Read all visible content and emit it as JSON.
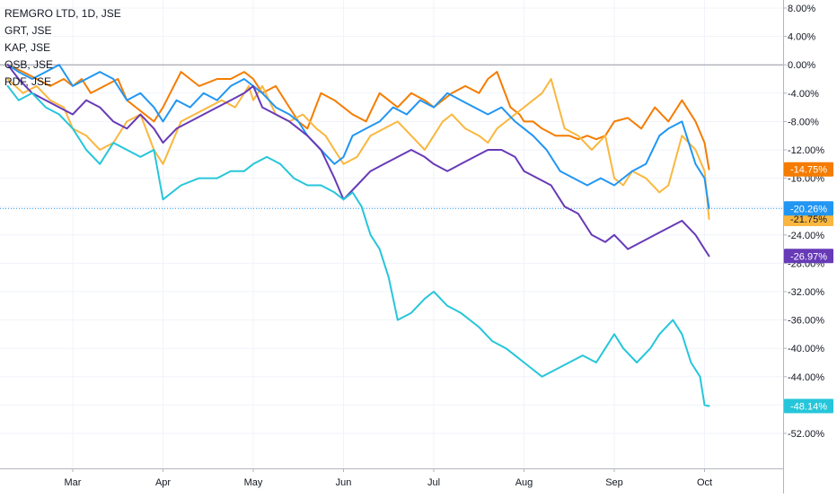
{
  "chart_data": {
    "type": "line",
    "symbol_title": "REMGRO LTD, 1D, JSE",
    "compare_symbols": [
      "GRT, JSE",
      "KAP, JSE",
      "OSB, JSE",
      "RDF, JSE"
    ],
    "y_axis": {
      "unit": "%",
      "ylim": [
        -54,
        10
      ],
      "ticks": [
        "8.00%",
        "4.00%",
        "0.00%",
        "-4.00%",
        "-8.00%",
        "-12.00%",
        "-16.00%",
        "-20.00%",
        "-24.00%",
        "-28.00%",
        "-32.00%",
        "-36.00%",
        "-40.00%",
        "-44.00%",
        "-48.00%",
        "-52.00%"
      ],
      "tick_values": [
        8,
        4,
        0,
        -4,
        -8,
        -12,
        -16,
        -20,
        -24,
        -28,
        -32,
        -36,
        -40,
        -44,
        -48,
        -52
      ],
      "position": "right"
    },
    "x_axis": {
      "ticks": [
        "Mar",
        "Apr",
        "May",
        "Jun",
        "Jul",
        "Aug",
        "Sep",
        "Oct"
      ],
      "tick_t": [
        0.0,
        1.0,
        2.0,
        3.0,
        4.0,
        5.0,
        6.0,
        7.0
      ]
    },
    "x_start": -0.72,
    "grid": true,
    "crosshair_value": -20.26,
    "series": [
      {
        "color": "#f57c00",
        "last_label": "-14.75%",
        "last": -14.75,
        "t": [
          -0.72,
          -0.55,
          -0.4,
          -0.25,
          -0.1,
          0.0,
          0.1,
          0.2,
          0.35,
          0.5,
          0.6,
          0.7,
          0.8,
          0.9,
          1.0,
          1.2,
          1.4,
          1.6,
          1.75,
          1.9,
          2.0,
          2.1,
          2.25,
          2.4,
          2.5,
          2.6,
          2.75,
          2.9,
          3.0,
          3.1,
          3.25,
          3.4,
          3.5,
          3.6,
          3.75,
          3.9,
          4.0,
          4.1,
          4.2,
          4.35,
          4.5,
          4.6,
          4.7,
          4.85,
          4.95,
          5.0,
          5.1,
          5.2,
          5.35,
          5.5,
          5.6,
          5.7,
          5.8,
          5.9,
          6.0,
          6.15,
          6.3,
          6.45,
          6.6,
          6.75,
          6.9,
          7.0,
          7.05
        ],
        "values": [
          0,
          -1,
          -2,
          -3,
          -2,
          -3,
          -2,
          -4,
          -3,
          -2,
          -5,
          -6,
          -7,
          -8,
          -6,
          -1,
          -3,
          -2,
          -2,
          -1,
          -2,
          -4,
          -3,
          -6,
          -8,
          -9,
          -4,
          -5,
          -6,
          -7,
          -8,
          -4,
          -5,
          -6,
          -4,
          -5,
          -6,
          -5,
          -4,
          -3,
          -4,
          -2,
          -1,
          -6,
          -7,
          -8,
          -8,
          -9,
          -10,
          -10,
          -10.5,
          -10,
          -10.5,
          -10,
          -8,
          -7.5,
          -9,
          -6,
          -8,
          -5,
          -8,
          -11,
          -14.75
        ]
      },
      {
        "color": "#f9b73f",
        "last_label": "-21.75%",
        "last": -21.75,
        "t": [
          -0.72,
          -0.55,
          -0.4,
          -0.25,
          -0.1,
          0.0,
          0.15,
          0.3,
          0.45,
          0.6,
          0.75,
          0.9,
          1.0,
          1.2,
          1.35,
          1.5,
          1.65,
          1.8,
          1.95,
          2.0,
          2.1,
          2.25,
          2.4,
          2.55,
          2.7,
          2.8,
          2.9,
          3.0,
          3.15,
          3.3,
          3.45,
          3.6,
          3.75,
          3.9,
          4.0,
          4.1,
          4.2,
          4.35,
          4.5,
          4.6,
          4.7,
          4.8,
          4.9,
          5.0,
          5.1,
          5.2,
          5.3,
          5.45,
          5.6,
          5.75,
          5.9,
          6.0,
          6.1,
          6.2,
          6.35,
          6.5,
          6.6,
          6.75,
          6.9,
          7.0,
          7.05
        ],
        "values": [
          -2,
          -4,
          -3,
          -5,
          -6,
          -9,
          -10,
          -12,
          -11,
          -8,
          -7,
          -12,
          -14,
          -8,
          -7,
          -6,
          -5,
          -6,
          -3,
          -5,
          -3,
          -7,
          -8,
          -7,
          -9,
          -10,
          -12,
          -14,
          -13,
          -10,
          -9,
          -8,
          -10,
          -12,
          -10,
          -8,
          -7,
          -9,
          -10,
          -11,
          -9,
          -8,
          -7,
          -6,
          -5,
          -4,
          -2,
          -9,
          -10,
          -12,
          -10,
          -16,
          -17,
          -15,
          -16,
          -18,
          -17,
          -10,
          -12,
          -15,
          -21.75
        ]
      },
      {
        "color": "#2196f3",
        "last_label": "-20.26%",
        "last": -20.26,
        "t": [
          -0.72,
          -0.6,
          -0.45,
          -0.3,
          -0.15,
          0.0,
          0.15,
          0.3,
          0.45,
          0.6,
          0.75,
          0.9,
          1.0,
          1.15,
          1.3,
          1.45,
          1.6,
          1.75,
          1.9,
          2.0,
          2.1,
          2.25,
          2.4,
          2.5,
          2.6,
          2.75,
          2.9,
          3.0,
          3.1,
          3.25,
          3.4,
          3.55,
          3.7,
          3.85,
          4.0,
          4.15,
          4.3,
          4.45,
          4.6,
          4.75,
          4.9,
          5.0,
          5.1,
          5.25,
          5.4,
          5.55,
          5.7,
          5.85,
          6.0,
          6.1,
          6.2,
          6.35,
          6.5,
          6.6,
          6.75,
          6.9,
          7.0,
          7.05
        ],
        "values": [
          0,
          -1,
          -2,
          -1,
          0,
          -3,
          -2,
          -1,
          -2,
          -5,
          -4,
          -6,
          -8,
          -5,
          -6,
          -4,
          -5,
          -3,
          -2,
          -3,
          -4,
          -6,
          -7,
          -8,
          -10,
          -12,
          -14,
          -13,
          -10,
          -9,
          -8,
          -6,
          -7,
          -5,
          -6,
          -4,
          -5,
          -6,
          -7,
          -6,
          -8,
          -9,
          -10,
          -12,
          -15,
          -16,
          -17,
          -16,
          -17,
          -16,
          -15,
          -14,
          -10,
          -9,
          -8,
          -14,
          -16,
          -20.26
        ]
      },
      {
        "color": "#673ab7",
        "last_label": "-26.97%",
        "last": -26.97,
        "t": [
          -0.72,
          -0.6,
          -0.45,
          -0.3,
          -0.15,
          0.0,
          0.15,
          0.3,
          0.45,
          0.6,
          0.75,
          0.9,
          1.0,
          1.15,
          1.3,
          1.45,
          1.6,
          1.75,
          1.9,
          2.0,
          2.1,
          2.25,
          2.4,
          2.5,
          2.6,
          2.75,
          2.9,
          3.0,
          3.15,
          3.3,
          3.45,
          3.6,
          3.75,
          3.9,
          4.0,
          4.15,
          4.3,
          4.45,
          4.6,
          4.75,
          4.9,
          5.0,
          5.15,
          5.3,
          5.45,
          5.6,
          5.75,
          5.9,
          6.0,
          6.15,
          6.3,
          6.45,
          6.6,
          6.75,
          6.9,
          7.0,
          7.05
        ],
        "values": [
          0,
          -2,
          -4,
          -5,
          -6,
          -7,
          -5,
          -6,
          -8,
          -9,
          -7,
          -9,
          -11,
          -9,
          -8,
          -7,
          -6,
          -5,
          -4,
          -3,
          -6,
          -7,
          -8,
          -9,
          -10,
          -12,
          -16,
          -19,
          -17,
          -15,
          -14,
          -13,
          -12,
          -13,
          -14,
          -15,
          -14,
          -13,
          -12,
          -12,
          -13,
          -15,
          -16,
          -17,
          -20,
          -21,
          -24,
          -25,
          -24,
          -26,
          -25,
          -24,
          -23,
          -22,
          -24,
          -26,
          -26.97
        ]
      },
      {
        "color": "#26c6da",
        "last_label": "-48.14%",
        "last": -48.14,
        "t": [
          -0.72,
          -0.6,
          -0.45,
          -0.3,
          -0.15,
          0.0,
          0.15,
          0.3,
          0.45,
          0.6,
          0.75,
          0.9,
          1.0,
          1.2,
          1.4,
          1.6,
          1.75,
          1.9,
          2.0,
          2.15,
          2.3,
          2.45,
          2.6,
          2.75,
          2.9,
          3.0,
          3.1,
          3.2,
          3.3,
          3.4,
          3.5,
          3.6,
          3.75,
          3.9,
          4.0,
          4.15,
          4.3,
          4.5,
          4.65,
          4.8,
          4.9,
          5.0,
          5.1,
          5.2,
          5.35,
          5.5,
          5.65,
          5.8,
          5.9,
          6.0,
          6.1,
          6.25,
          6.4,
          6.5,
          6.65,
          6.75,
          6.85,
          6.95,
          7.0,
          7.05
        ],
        "values": [
          -3,
          -5,
          -4,
          -6,
          -7,
          -9,
          -12,
          -14,
          -11,
          -12,
          -13,
          -12,
          -19,
          -17,
          -16,
          -16,
          -15,
          -15,
          -14,
          -13,
          -14,
          -16,
          -17,
          -17,
          -18,
          -19,
          -18,
          -20,
          -24,
          -26,
          -30,
          -36,
          -35,
          -33,
          -32,
          -34,
          -35,
          -37,
          -39,
          -40,
          -41,
          -42,
          -43,
          -44,
          -43,
          -42,
          -41,
          -42,
          -40,
          -38,
          -40,
          -42,
          -40,
          -38,
          -36,
          -38,
          -42,
          -44,
          -48,
          -48.14
        ]
      }
    ]
  }
}
